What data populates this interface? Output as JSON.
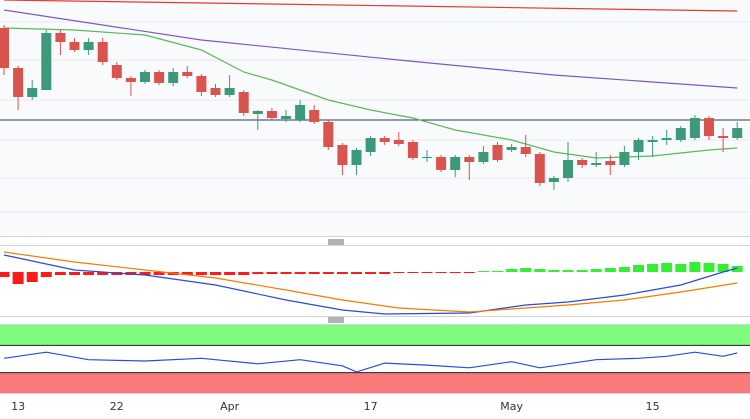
{
  "chart_data": {
    "type": "candlestick",
    "categories": [
      null,
      "13",
      null,
      null,
      null,
      null,
      null,
      null,
      "22",
      null,
      null,
      null,
      null,
      null,
      null,
      null,
      "Apr",
      null,
      null,
      null,
      null,
      null,
      null,
      null,
      null,
      null,
      "17",
      null,
      null,
      null,
      null,
      null,
      null,
      null,
      null,
      null,
      "May",
      null,
      null,
      null,
      null,
      null,
      null,
      null,
      null,
      null,
      "15",
      null,
      null,
      null,
      null,
      null,
      null
    ],
    "open": [
      212,
      172,
      143,
      150,
      207,
      198,
      190,
      198,
      175,
      162,
      158,
      168,
      157,
      168,
      164,
      152,
      145,
      148,
      126,
      129,
      121,
      120,
      130,
      118,
      95,
      75,
      88,
      102,
      100,
      98,
      82,
      83,
      70,
      83,
      78,
      95,
      90,
      93,
      86,
      58,
      62,
      80,
      75,
      79,
      75,
      88,
      98,
      100,
      100,
      102,
      122,
      104,
      102
    ],
    "close": [
      172,
      143,
      152,
      207,
      198,
      190,
      198,
      178,
      162,
      158,
      168,
      157,
      168,
      164,
      148,
      145,
      152,
      127,
      129,
      122,
      124,
      135,
      118,
      93,
      75,
      90,
      102,
      98,
      96,
      82,
      83,
      70,
      83,
      78,
      88,
      80,
      93,
      86,
      57,
      62,
      80,
      75,
      77,
      75,
      88,
      100,
      100,
      102,
      112,
      122,
      104,
      102,
      112
    ],
    "high": [
      215,
      174,
      160,
      210,
      210,
      202,
      202,
      202,
      178,
      164,
      170,
      170,
      172,
      174,
      166,
      156,
      165,
      150,
      130,
      132,
      130,
      140,
      135,
      120,
      97,
      92,
      104,
      104,
      108,
      100,
      90,
      85,
      85,
      85,
      94,
      98,
      96,
      105,
      88,
      64,
      98,
      82,
      88,
      85,
      94,
      102,
      104,
      110,
      114,
      125,
      124,
      112,
      118
    ],
    "low": [
      165,
      130,
      140,
      150,
      185,
      188,
      185,
      175,
      160,
      144,
      156,
      155,
      154,
      162,
      144,
      143,
      143,
      124,
      110,
      120,
      118,
      118,
      116,
      90,
      65,
      65,
      84,
      95,
      94,
      80,
      78,
      68,
      63,
      60,
      76,
      78,
      88,
      83,
      54,
      50,
      58,
      72,
      73,
      65,
      73,
      80,
      83,
      95,
      98,
      100,
      100,
      88,
      100
    ],
    "up_color": "#3c9a7a",
    "down_color": "#d9534f",
    "ylim": [
      4,
      240
    ],
    "overlays": [
      {
        "color": "#e53a2e",
        "x": [
          0,
          52
        ],
        "values": [
          240,
          229
        ]
      },
      {
        "color": "#7e57c2",
        "x": [
          0,
          14,
          28,
          39,
          52
        ],
        "values": [
          230,
          200,
          180,
          165,
          152
        ]
      },
      {
        "color": "#5cb85c",
        "x": [
          0,
          5,
          10,
          14,
          17,
          19,
          21,
          23,
          26,
          29,
          32,
          36,
          39,
          42,
          46,
          50,
          52
        ],
        "values": [
          212,
          210,
          205,
          190,
          168,
          160,
          150,
          140,
          130,
          122,
          110,
          100,
          88,
          82,
          84,
          90,
          92
        ]
      }
    ],
    "hline": {
      "value": 120,
      "color": "#2b3a55"
    },
    "macd": {
      "ylim": [
        -44,
        26
      ],
      "histogram": [
        -5,
        -12,
        -10,
        -5,
        -3,
        -3,
        -3,
        -3,
        -3,
        -3,
        -3,
        -3,
        -3,
        -3,
        -3,
        -3,
        -3,
        -3,
        -2,
        -2,
        -2,
        -2,
        -2,
        -2,
        -2,
        -2,
        -2,
        -2,
        -1,
        -1,
        -1,
        -1,
        -1,
        -1,
        1,
        1,
        3,
        4,
        3,
        2,
        2,
        2,
        3,
        4,
        5,
        7,
        8,
        9,
        8,
        10,
        9,
        8,
        6
      ],
      "up_color": "#33ee33",
      "down_color": "#ff1a1a",
      "lines": [
        {
          "color": "#2a4bd7",
          "x": [
            0,
            5,
            10,
            15,
            20,
            24,
            27,
            33,
            37,
            40,
            44,
            48,
            51,
            52
          ],
          "values": [
            17,
            2,
            -3,
            -13,
            -28,
            -38,
            -42,
            -41,
            -33,
            -30,
            -23,
            -13,
            0,
            4
          ]
        },
        {
          "color": "#f57c00",
          "x": [
            0,
            5,
            10,
            15,
            20,
            24,
            28,
            33,
            37,
            40,
            44,
            48,
            52
          ],
          "values": [
            20,
            10,
            2,
            -6,
            -18,
            -28,
            -36,
            -40,
            -36,
            -33,
            -28,
            -20,
            -11
          ]
        }
      ]
    },
    "rsi": {
      "ylim": [
        0,
        100
      ],
      "bands": [
        {
          "range": [
            70,
            100
          ],
          "color": "#7dfc7d"
        },
        {
          "range": [
            0,
            30
          ],
          "color": "#fa7a7a"
        }
      ],
      "line": {
        "color": "#2a4bd7",
        "x": [
          0,
          3,
          6,
          10,
          14,
          18,
          21,
          24,
          25,
          27,
          30,
          33,
          36,
          38,
          42,
          45,
          47,
          49,
          51,
          52
        ],
        "values": [
          51,
          60,
          49,
          47,
          51,
          43,
          49,
          40,
          31,
          44,
          41,
          37,
          46,
          37,
          49,
          51,
          54,
          60,
          54,
          59
        ]
      }
    }
  }
}
